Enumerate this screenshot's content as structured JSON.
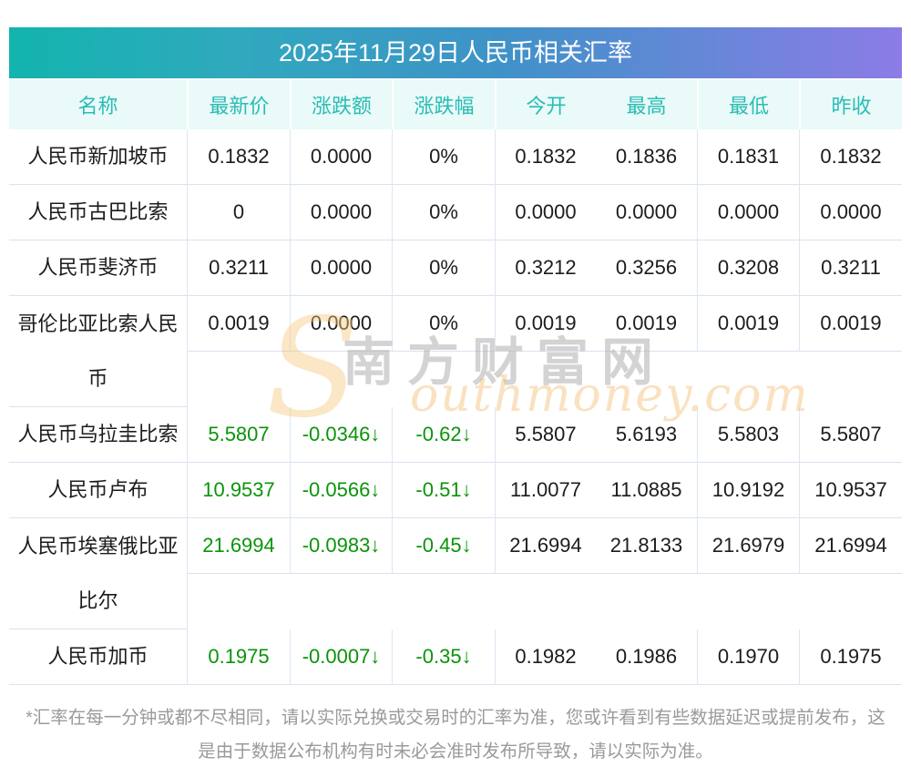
{
  "title": "2025年11月29日人民币相关汇率",
  "colors": {
    "title_gradient_left": "#12b4ae",
    "title_gradient_mid": "#3f92c8",
    "title_gradient_right": "#8c7ce6",
    "header_bg": "#e9faf8",
    "header_text": "#2abcb5",
    "down_green": "#0a940a",
    "border": "#dbe3ef",
    "footer_text": "#9a9a9a"
  },
  "watermark": {
    "big_s": "S",
    "cjk": "南方财富网",
    "latin": "outhmoney.com"
  },
  "table": {
    "headers": [
      "名称",
      "最新价",
      "涨跌额",
      "涨跌幅",
      "今开",
      "最高",
      "最低",
      "昨收"
    ],
    "rows": [
      {
        "name": "人民币新加坡币",
        "latest": "0.1832",
        "change": "0.0000",
        "change_pct": "0%",
        "open": "0.1832",
        "high": "0.1836",
        "low": "0.1831",
        "prev_close": "0.1832",
        "trend": "flat",
        "tall": false
      },
      {
        "name": "人民币古巴比索",
        "latest": "0",
        "change": "0.0000",
        "change_pct": "0%",
        "open": "0.0000",
        "high": "0.0000",
        "low": "0.0000",
        "prev_close": "0.0000",
        "trend": "flat",
        "tall": false
      },
      {
        "name": "人民币斐济币",
        "latest": "0.3211",
        "change": "0.0000",
        "change_pct": "0%",
        "open": "0.3212",
        "high": "0.3256",
        "low": "0.3208",
        "prev_close": "0.3211",
        "trend": "flat",
        "tall": false
      },
      {
        "name": "哥伦比亚比索人民币",
        "latest": "0.0019",
        "change": "0.0000",
        "change_pct": "0%",
        "open": "0.0019",
        "high": "0.0019",
        "low": "0.0019",
        "prev_close": "0.0019",
        "trend": "flat",
        "tall": true
      },
      {
        "name": "人民币乌拉圭比索",
        "latest": "5.5807",
        "change": "-0.0346↓",
        "change_pct": "-0.62↓",
        "open": "5.5807",
        "high": "5.6193",
        "low": "5.5803",
        "prev_close": "5.5807",
        "trend": "down",
        "tall": false
      },
      {
        "name": "人民币卢布",
        "latest": "10.9537",
        "change": "-0.0566↓",
        "change_pct": "-0.51↓",
        "open": "11.0077",
        "high": "11.0885",
        "low": "10.9192",
        "prev_close": "10.9537",
        "trend": "down",
        "tall": false
      },
      {
        "name": "人民币埃塞俄比亚比尔",
        "latest": "21.6994",
        "change": "-0.0983↓",
        "change_pct": "-0.45↓",
        "open": "21.6994",
        "high": "21.8133",
        "low": "21.6979",
        "prev_close": "21.6994",
        "trend": "down",
        "tall": true
      },
      {
        "name": "人民币加币",
        "latest": "0.1975",
        "change": "-0.0007↓",
        "change_pct": "-0.35↓",
        "open": "0.1982",
        "high": "0.1986",
        "low": "0.1970",
        "prev_close": "0.1975",
        "trend": "down",
        "tall": false
      }
    ]
  },
  "footer": {
    "note": "*汇率在每一分钟或都不尽相同，请以实际兑换或交易时的汇率为准，您或许看到有些数据延迟或提前发布，这是由于数据公布机构有时未必会准时发布所导致，请以实际为准。"
  }
}
